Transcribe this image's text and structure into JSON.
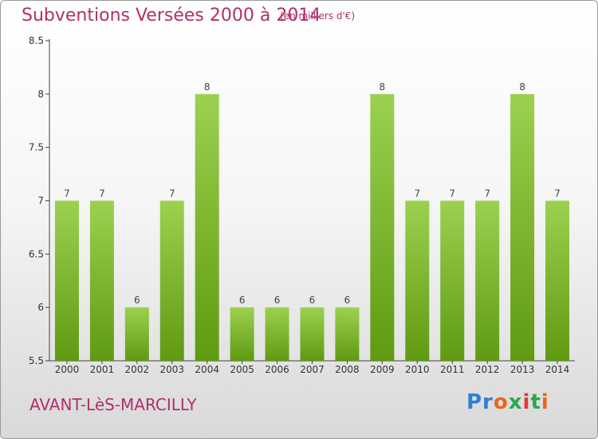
{
  "header": {
    "title": "Subventions Versées 2000 à 2014",
    "subtitle": "(en milliers d'€)"
  },
  "footer": {
    "commune": "AVANT-LèS-MARCILLY",
    "logo_text": "Proxiti"
  },
  "colors": {
    "title": "#b0306a",
    "bar_top": "#9bd14f",
    "bar_bottom": "#5f9a12"
  },
  "chart_data": {
    "type": "bar",
    "title": "Subventions Versées 2000 à 2014",
    "subtitle": "(en milliers d'€)",
    "categories": [
      "2000",
      "2001",
      "2002",
      "2003",
      "2004",
      "2005",
      "2006",
      "2007",
      "2008",
      "2009",
      "2010",
      "2011",
      "2012",
      "2013",
      "2014"
    ],
    "values": [
      7,
      7,
      6,
      7,
      8,
      6,
      6,
      6,
      6,
      8,
      7,
      7,
      7,
      8,
      7
    ],
    "ylim": [
      5.5,
      8.5
    ],
    "yticks": [
      5.5,
      6,
      6.5,
      7,
      7.5,
      8,
      8.5
    ],
    "ytick_labels": [
      "5.5",
      "6",
      "6.5",
      "7",
      "7.5",
      "8",
      "8.5"
    ],
    "grid": false,
    "data_labels": true
  }
}
